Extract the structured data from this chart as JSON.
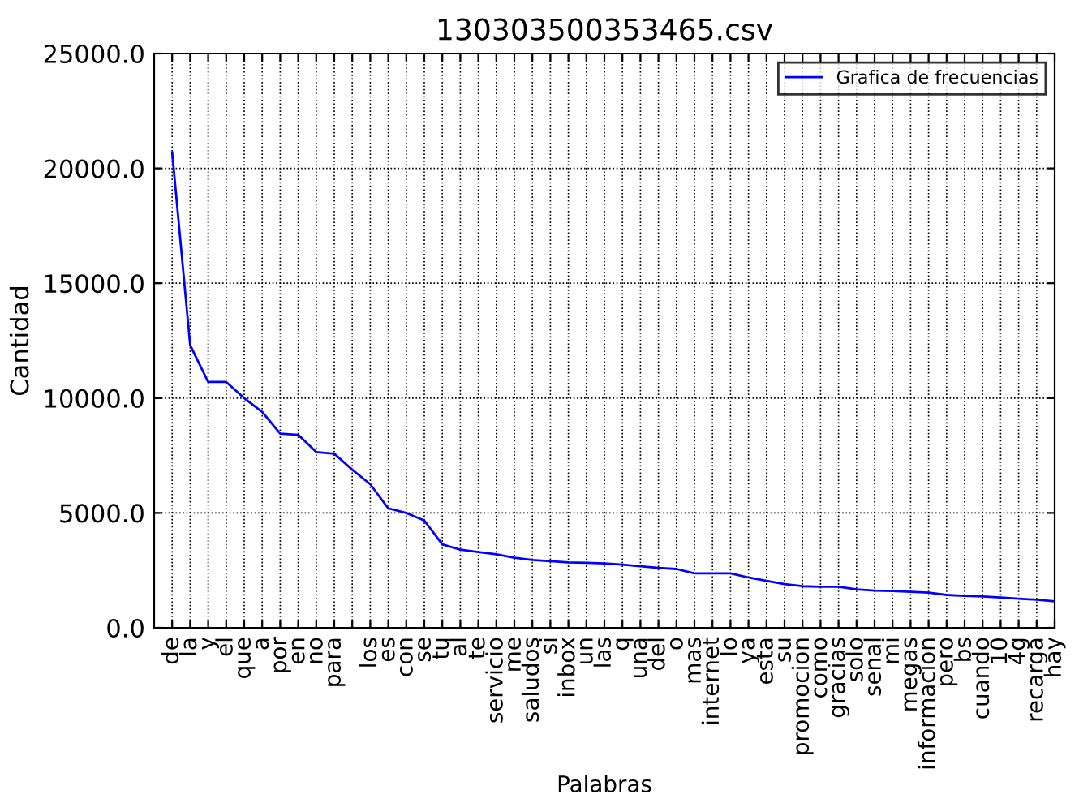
{
  "chart_data": {
    "type": "line",
    "title": "130303500353465.csv",
    "xlabel": "Palabras",
    "ylabel": "Cantidad",
    "categories": [
      "de",
      "la",
      "y",
      "el",
      "que",
      "a",
      "por",
      "en",
      "no",
      "para",
      null,
      "los",
      "es",
      "con",
      "se",
      "tu",
      "al",
      "te",
      "servicio",
      "me",
      "saludos",
      "si",
      "inbox",
      "un",
      "las",
      "q",
      "una",
      "del",
      "o",
      "mas",
      "internet",
      "lo",
      "ya",
      "esta",
      "su",
      "promocion",
      "como",
      "gracias",
      "solo",
      "senal",
      "mi",
      "megas",
      "informacion",
      "pero",
      "bs",
      "cuando",
      "10",
      "4g",
      "recarga",
      "hay"
    ],
    "series": [
      {
        "name": "Grafica de frecuencias",
        "color": "#0000ff",
        "values": [
          20700,
          12300,
          10700,
          10700,
          10000,
          9400,
          8450,
          8400,
          7650,
          7580,
          6880,
          6250,
          5200,
          5000,
          4670,
          3630,
          3400,
          3300,
          3200,
          3050,
          2950,
          2900,
          2850,
          2830,
          2800,
          2750,
          2680,
          2610,
          2560,
          2370,
          2370,
          2370,
          2190,
          2040,
          1900,
          1810,
          1790,
          1790,
          1670,
          1620,
          1600,
          1570,
          1530,
          1430,
          1390,
          1360,
          1320,
          1270,
          1220,
          1150
        ]
      }
    ],
    "ylim": [
      0,
      25000
    ],
    "yticks": [
      {
        "value": 0,
        "label": "0.0"
      },
      {
        "value": 5000,
        "label": "5000.0"
      },
      {
        "value": 10000,
        "label": "10000.0"
      },
      {
        "value": 15000,
        "label": "15000.0"
      },
      {
        "value": 20000,
        "label": "20000.0"
      },
      {
        "value": 25000,
        "label": "25000.0"
      }
    ],
    "grid": true,
    "legend": "top right",
    "line_style": "solid"
  }
}
